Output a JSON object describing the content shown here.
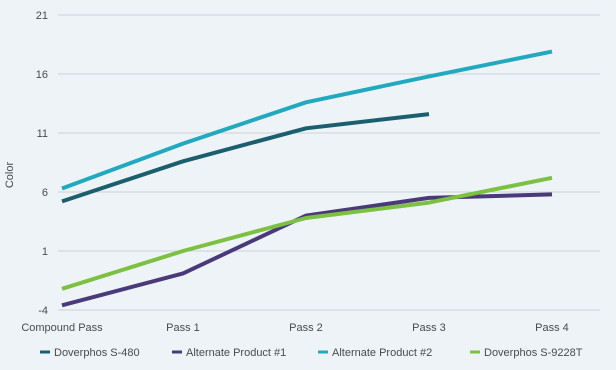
{
  "chart_data": {
    "type": "line",
    "title": "",
    "xlabel": "",
    "ylabel": "Color",
    "ylim": [
      -4,
      21
    ],
    "yticks": [
      21,
      16,
      11,
      6,
      1,
      -4
    ],
    "categories": [
      "Compound Pass",
      "Pass 1",
      "Pass 2",
      "Pass 3",
      "Pass 4"
    ],
    "grid": "horizontal",
    "legend": "bottom",
    "series": [
      {
        "name": "Doverphos S-480",
        "color": "#1b5e6e",
        "values": [
          5.2,
          8.6,
          11.4,
          12.6,
          null
        ]
      },
      {
        "name": "Alternate Product #1",
        "color": "#4b3a7a",
        "values": [
          -3.6,
          -0.9,
          4.0,
          5.5,
          5.8
        ]
      },
      {
        "name": "Alternate Product #2",
        "color": "#22a9bf",
        "values": [
          6.3,
          10.1,
          13.6,
          15.8,
          17.9
        ]
      },
      {
        "name": "Doverphos S-9228T",
        "color": "#7cc142",
        "values": [
          -2.2,
          1.0,
          3.8,
          5.1,
          7.2
        ]
      }
    ]
  }
}
